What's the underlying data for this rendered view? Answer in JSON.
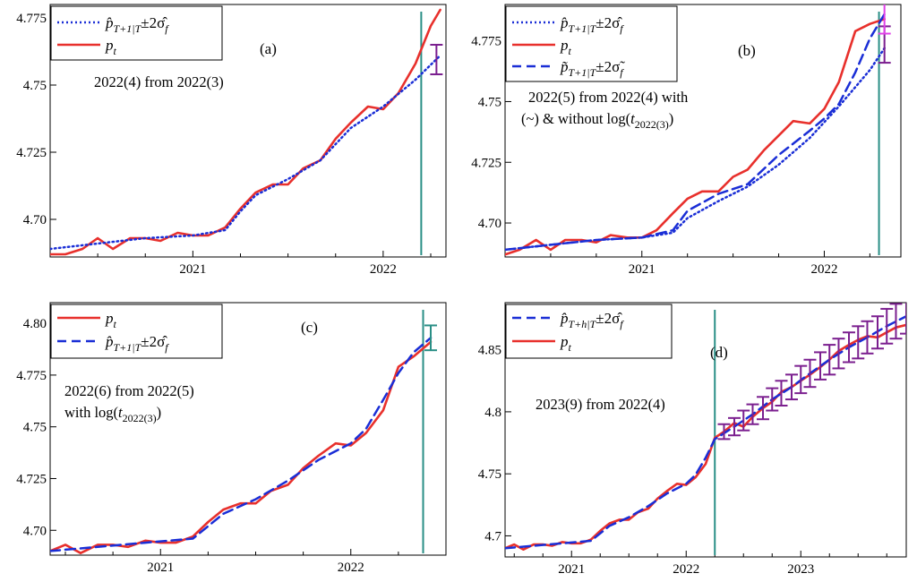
{
  "chart_data": [
    {
      "type": "line",
      "panel_label": "(a)",
      "annotation": [
        "2022(4) from 2022(3)"
      ],
      "legend": [
        "p̂_{T+1|T} ± 2σ̂_f",
        "p_t"
      ],
      "x_tick_labels": [
        "2021",
        "2022"
      ],
      "y_tick_labels": [
        "4.70",
        "4.725",
        "4.75",
        "4.775"
      ],
      "xlim": [
        2020.25,
        2022.33
      ],
      "ylim": [
        4.686,
        4.78
      ],
      "vline": 2022.2,
      "series": [
        {
          "style": "actual",
          "color": "#e8302c",
          "x": [
            2020.25,
            2020.33,
            2020.42,
            2020.5,
            2020.58,
            2020.67,
            2020.75,
            2020.83,
            2020.92,
            2021.0,
            2021.08,
            2021.17,
            2021.25,
            2021.33,
            2021.42,
            2021.5,
            2021.58,
            2021.67,
            2021.75,
            2021.83,
            2021.92,
            2022.0,
            2022.08,
            2022.17,
            2022.25,
            2022.3
          ],
          "y": [
            4.687,
            4.687,
            4.689,
            4.693,
            4.689,
            4.693,
            4.693,
            4.692,
            4.695,
            4.694,
            4.694,
            4.697,
            4.704,
            4.71,
            4.713,
            4.713,
            4.719,
            4.722,
            4.73,
            4.736,
            4.742,
            4.741,
            4.747,
            4.758,
            4.772,
            4.778
          ]
        },
        {
          "style": "fitted_dotted",
          "color": "#1a2ed6",
          "x": [
            2020.25,
            2020.5,
            2020.75,
            2021.0,
            2021.17,
            2021.25,
            2021.33,
            2021.5,
            2021.67,
            2021.83,
            2022.0,
            2022.17,
            2022.3
          ],
          "y": [
            4.689,
            4.691,
            4.693,
            4.694,
            4.696,
            4.703,
            4.709,
            4.715,
            4.722,
            4.734,
            4.742,
            4.752,
            4.761
          ]
        }
      ],
      "error_bars": [
        {
          "x": 2022.28,
          "low": 4.754,
          "high": 4.765,
          "color": "#7b1f8f"
        }
      ]
    },
    {
      "type": "line",
      "panel_label": "(b)",
      "annotation": [
        "2022(5) from 2022(4) with",
        "(~) & without log(t_{2022(3)})"
      ],
      "legend": [
        "p̂_{T+1|T} ± 2σ̂_f",
        "p_t",
        "p̃_{T+1|T} ± 2σ̃_f"
      ],
      "x_tick_labels": [
        "2021",
        "2022"
      ],
      "y_tick_labels": [
        "4.70",
        "4.725",
        "4.75",
        "4.775"
      ],
      "xlim": [
        2020.25,
        2022.42
      ],
      "ylim": [
        4.686,
        4.79
      ],
      "vline": 2022.3,
      "series": [
        {
          "style": "actual",
          "color": "#e8302c",
          "x": [
            2020.25,
            2020.33,
            2020.42,
            2020.5,
            2020.58,
            2020.67,
            2020.75,
            2020.83,
            2020.92,
            2021.0,
            2021.08,
            2021.17,
            2021.25,
            2021.33,
            2021.42,
            2021.5,
            2021.58,
            2021.67,
            2021.75,
            2021.83,
            2021.92,
            2022.0,
            2022.08,
            2022.17,
            2022.25,
            2022.33
          ],
          "y": [
            4.687,
            4.689,
            4.693,
            4.689,
            4.693,
            4.693,
            4.692,
            4.695,
            4.694,
            4.694,
            4.697,
            4.704,
            4.71,
            4.713,
            4.713,
            4.719,
            4.722,
            4.73,
            4.736,
            4.742,
            4.741,
            4.747,
            4.758,
            4.779,
            4.782,
            4.784
          ]
        },
        {
          "style": "fitted_dotted",
          "color": "#1a2ed6",
          "x": [
            2020.25,
            2020.5,
            2020.75,
            2021.0,
            2021.17,
            2021.25,
            2021.42,
            2021.58,
            2021.75,
            2021.92,
            2022.08,
            2022.25,
            2022.33
          ],
          "y": [
            4.689,
            4.691,
            4.693,
            4.694,
            4.696,
            4.702,
            4.709,
            4.715,
            4.724,
            4.735,
            4.748,
            4.763,
            4.772
          ]
        },
        {
          "style": "fitted_dashed",
          "color": "#1a2ed6",
          "x": [
            2020.25,
            2020.5,
            2020.75,
            2021.0,
            2021.17,
            2021.25,
            2021.42,
            2021.58,
            2021.75,
            2021.92,
            2022.0,
            2022.08,
            2022.17,
            2022.25,
            2022.33
          ],
          "y": [
            4.689,
            4.691,
            4.693,
            4.694,
            4.697,
            4.705,
            4.712,
            4.716,
            4.728,
            4.738,
            4.743,
            4.749,
            4.762,
            4.776,
            4.786
          ]
        }
      ],
      "error_bars": [
        {
          "x": 2022.33,
          "low": 4.766,
          "high": 4.781,
          "color": "#7b1f8f"
        },
        {
          "x": 2022.33,
          "low": 4.778,
          "high": 4.791,
          "color": "#e040e8"
        }
      ]
    },
    {
      "type": "line",
      "panel_label": "(c)",
      "annotation": [
        "2022(6) from 2022(5)",
        "with log(t_{2022(3)})"
      ],
      "legend": [
        "p_t",
        "p̂_{T+1|T} ± 2σ̂_f"
      ],
      "x_tick_labels": [
        "2021",
        "2022"
      ],
      "y_tick_labels": [
        "4.70",
        "4.725",
        "4.75",
        "4.775",
        "4.80"
      ],
      "xlim": [
        2020.42,
        2022.5
      ],
      "ylim": [
        4.688,
        4.81
      ],
      "vline": 2022.38,
      "series": [
        {
          "style": "actual",
          "color": "#e8302c",
          "x": [
            2020.42,
            2020.5,
            2020.58,
            2020.67,
            2020.75,
            2020.83,
            2020.92,
            2021.0,
            2021.08,
            2021.17,
            2021.25,
            2021.33,
            2021.42,
            2021.5,
            2021.58,
            2021.67,
            2021.75,
            2021.83,
            2021.92,
            2022.0,
            2022.08,
            2022.17,
            2022.25,
            2022.33,
            2022.42
          ],
          "y": [
            4.69,
            4.693,
            4.689,
            4.693,
            4.693,
            4.692,
            4.695,
            4.694,
            4.694,
            4.697,
            4.704,
            4.71,
            4.713,
            4.713,
            4.719,
            4.722,
            4.73,
            4.736,
            4.742,
            4.741,
            4.747,
            4.758,
            4.779,
            4.784,
            4.791
          ]
        },
        {
          "style": "fitted_dashed",
          "color": "#1a2ed6",
          "x": [
            2020.42,
            2020.67,
            2020.92,
            2021.17,
            2021.33,
            2021.5,
            2021.67,
            2021.83,
            2022.0,
            2022.08,
            2022.17,
            2022.25,
            2022.33,
            2022.42
          ],
          "y": [
            4.69,
            4.692,
            4.694,
            4.696,
            4.708,
            4.715,
            4.724,
            4.734,
            4.742,
            4.749,
            4.763,
            4.776,
            4.786,
            4.793
          ]
        }
      ],
      "error_bars": [
        {
          "x": 2022.42,
          "low": 4.787,
          "high": 4.799,
          "color": "#2a8f86"
        }
      ]
    },
    {
      "type": "line",
      "panel_label": "(d)",
      "annotation": [
        "2023(9) from 2022(4)"
      ],
      "legend": [
        "p̂_{T+h|T} ± 2σ̂_f",
        "p_t"
      ],
      "x_tick_labels": [
        "2021",
        "2022",
        "2023"
      ],
      "y_tick_labels": [
        "4.7",
        "4.75",
        "4.8",
        "4.85"
      ],
      "xlim": [
        2020.42,
        2023.92
      ],
      "ylim": [
        4.683,
        4.888
      ],
      "vline": 2022.25,
      "series": [
        {
          "style": "actual",
          "color": "#e8302c",
          "x": [
            2020.42,
            2020.5,
            2020.58,
            2020.67,
            2020.75,
            2020.83,
            2020.92,
            2021.0,
            2021.08,
            2021.17,
            2021.25,
            2021.33,
            2021.42,
            2021.5,
            2021.58,
            2021.67,
            2021.75,
            2021.83,
            2021.92,
            2022.0,
            2022.08,
            2022.17,
            2022.25,
            2022.33,
            2022.42,
            2022.5,
            2022.58,
            2022.67,
            2022.75,
            2022.83,
            2022.92,
            2023.0,
            2023.08,
            2023.17,
            2023.25,
            2023.33,
            2023.42,
            2023.5,
            2023.58,
            2023.67,
            2023.75,
            2023.83,
            2023.92
          ],
          "y": [
            4.69,
            4.693,
            4.689,
            4.693,
            4.693,
            4.692,
            4.695,
            4.694,
            4.694,
            4.697,
            4.704,
            4.71,
            4.713,
            4.713,
            4.719,
            4.722,
            4.73,
            4.736,
            4.742,
            4.741,
            4.747,
            4.758,
            4.779,
            4.784,
            4.791,
            4.788,
            4.796,
            4.803,
            4.808,
            4.816,
            4.82,
            4.825,
            4.83,
            4.836,
            4.842,
            4.849,
            4.854,
            4.858,
            4.861,
            4.86,
            4.864,
            4.868,
            4.87
          ]
        },
        {
          "style": "fitted_dashed",
          "color": "#1a2ed6",
          "x": [
            2020.42,
            2020.67,
            2020.92,
            2021.17,
            2021.33,
            2021.5,
            2021.67,
            2021.83,
            2022.0,
            2022.08,
            2022.17,
            2022.25,
            2022.42,
            2022.58,
            2022.75,
            2022.92,
            2023.08,
            2023.25,
            2023.42,
            2023.58,
            2023.75,
            2023.92
          ],
          "y": [
            4.69,
            4.692,
            4.694,
            4.696,
            4.708,
            4.715,
            4.724,
            4.734,
            4.742,
            4.749,
            4.763,
            4.778,
            4.788,
            4.798,
            4.81,
            4.82,
            4.831,
            4.842,
            4.852,
            4.86,
            4.869,
            4.877
          ]
        }
      ],
      "error_bars_series": {
        "color": "#7b1f8f",
        "x": [
          2022.33,
          2022.42,
          2022.5,
          2022.58,
          2022.67,
          2022.75,
          2022.83,
          2022.92,
          2023.0,
          2023.08,
          2023.17,
          2023.25,
          2023.33,
          2023.42,
          2023.5,
          2023.58,
          2023.67,
          2023.75,
          2023.83,
          2023.92
        ],
        "center": [
          4.784,
          4.788,
          4.793,
          4.798,
          4.803,
          4.81,
          4.815,
          4.82,
          4.826,
          4.831,
          4.837,
          4.842,
          4.847,
          4.852,
          4.856,
          4.86,
          4.864,
          4.869,
          4.873,
          4.877
        ],
        "halfwidth": [
          0.006,
          0.007,
          0.008,
          0.008,
          0.009,
          0.009,
          0.01,
          0.01,
          0.011,
          0.011,
          0.011,
          0.012,
          0.012,
          0.012,
          0.013,
          0.013,
          0.013,
          0.014,
          0.014,
          0.014
        ]
      }
    }
  ]
}
